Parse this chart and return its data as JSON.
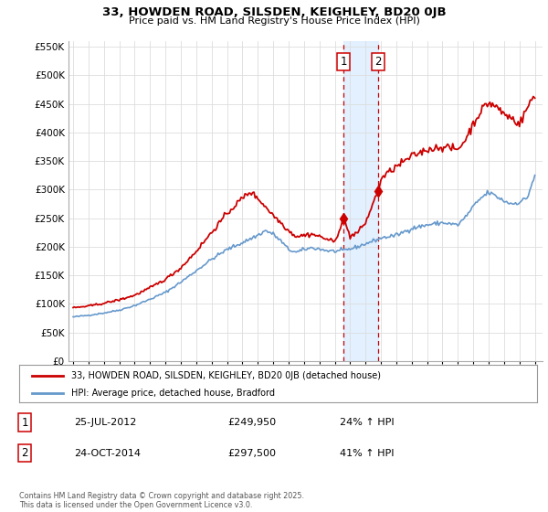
{
  "title1": "33, HOWDEN ROAD, SILSDEN, KEIGHLEY, BD20 0JB",
  "title2": "Price paid vs. HM Land Registry's House Price Index (HPI)",
  "legend_line1": "33, HOWDEN ROAD, SILSDEN, KEIGHLEY, BD20 0JB (detached house)",
  "legend_line2": "HPI: Average price, detached house, Bradford",
  "sale1_date": "25-JUL-2012",
  "sale1_price": "£249,950",
  "sale1_hpi": "24% ↑ HPI",
  "sale1_year": 2012.56,
  "sale1_value": 249950,
  "sale2_date": "24-OCT-2014",
  "sale2_price": "£297,500",
  "sale2_hpi": "41% ↑ HPI",
  "sale2_year": 2014.81,
  "sale2_value": 297500,
  "footer": "Contains HM Land Registry data © Crown copyright and database right 2025.\nThis data is licensed under the Open Government Licence v3.0.",
  "line_color_red": "#cc0000",
  "line_color_blue": "#6699cc",
  "shade_color": "#ddeeff",
  "bg_color": "#ffffff",
  "grid_color": "#dddddd",
  "ylim": [
    0,
    560000
  ],
  "yticks": [
    0,
    50000,
    100000,
    150000,
    200000,
    250000,
    300000,
    350000,
    400000,
    450000,
    500000,
    550000
  ],
  "xlim_start": 1994.7,
  "xlim_end": 2025.5
}
